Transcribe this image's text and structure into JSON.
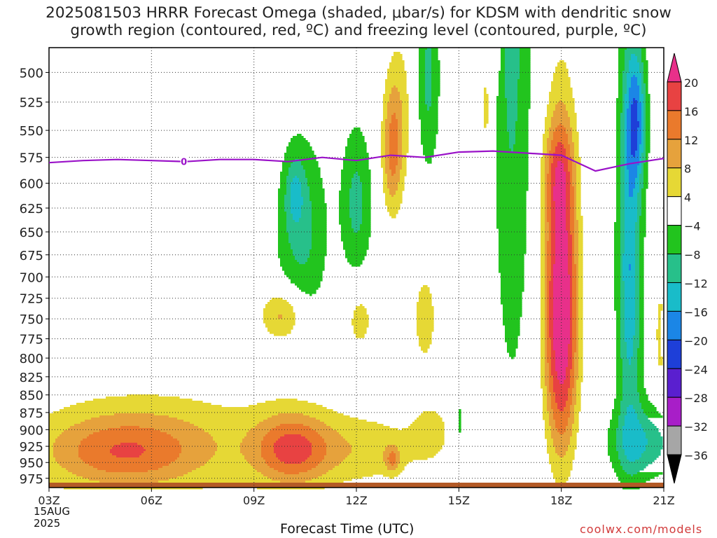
{
  "title": {
    "line1": "2025081503 HRRR Forecast Omega (shaded, μbar/s) for KDSM with dendritic snow",
    "line2": "growth region (contoured, red, ºC) and freezing level (contoured, purple, ºC)"
  },
  "chart_data": {
    "type": "heatmap",
    "title": "2025081503 HRRR Forecast Omega (shaded, μbar/s) for KDSM with dendritic snow growth region (contoured, red, ºC) and freezing level (contoured, purple, ºC)",
    "xlabel": "Forecast Time (UTC)",
    "ylabel": "",
    "x_ticks": [
      "03Z",
      "06Z",
      "09Z",
      "12Z",
      "15Z",
      "18Z",
      "21Z"
    ],
    "x_tick_hours": [
      3,
      6,
      9,
      12,
      15,
      18,
      21
    ],
    "x_range_hours": [
      3,
      21
    ],
    "y_ticks": [
      500,
      525,
      550,
      575,
      600,
      625,
      650,
      675,
      700,
      725,
      750,
      775,
      800,
      825,
      850,
      875,
      900,
      925,
      950,
      975
    ],
    "y_range": [
      480,
      990
    ],
    "y_scale": "log",
    "y_inverted": true,
    "grid": true,
    "start_date": [
      "15AUG",
      "2025"
    ],
    "colorbar": {
      "labels": [
        "20",
        "16",
        "12",
        "8",
        "4",
        "−4",
        "−8",
        "−12",
        "−16",
        "−20",
        "−24",
        "−28",
        "−32",
        "−36"
      ],
      "bins": [
        {
          "from": 20,
          "to": 99,
          "color": "#e8308a"
        },
        {
          "from": 16,
          "to": 20,
          "color": "#e84242"
        },
        {
          "from": 12,
          "to": 16,
          "color": "#ea7a2c"
        },
        {
          "from": 8,
          "to": 12,
          "color": "#e6a23c"
        },
        {
          "from": 4,
          "to": 8,
          "color": "#e6d835"
        },
        {
          "from": -4,
          "to": 4,
          "color": "#ffffff"
        },
        {
          "from": -8,
          "to": -4,
          "color": "#22c41e"
        },
        {
          "from": -12,
          "to": -8,
          "color": "#27c08a"
        },
        {
          "from": -16,
          "to": -12,
          "color": "#19bcc9"
        },
        {
          "from": -20,
          "to": -16,
          "color": "#1b86e6"
        },
        {
          "from": -24,
          "to": -20,
          "color": "#1e3fd8"
        },
        {
          "from": -28,
          "to": -24,
          "color": "#5a1fcf"
        },
        {
          "from": -32,
          "to": -28,
          "color": "#a81ec8"
        },
        {
          "from": -36,
          "to": -32,
          "color": "#a6a6a6"
        },
        {
          "from": -99,
          "to": -36,
          "color": "#000000"
        }
      ]
    },
    "omega_features": [
      {
        "hour": 18.0,
        "p": 740,
        "dh": 0.5,
        "dp": 195,
        "peak": 24,
        "pow": 2.4
      },
      {
        "hour": 17.9,
        "p": 590,
        "dh": 0.45,
        "dp": 50,
        "peak": 8,
        "pow": 2
      },
      {
        "hour": 20.0,
        "p": 690,
        "dh": 0.36,
        "dp": 230,
        "peak": -16,
        "pow": 1.8
      },
      {
        "hour": 20.2,
        "p": 540,
        "dh": 0.3,
        "dp": 60,
        "peak": -14,
        "pow": 2
      },
      {
        "hour": 20.4,
        "p": 920,
        "dh": 1.0,
        "dp": 55,
        "peak": -11,
        "pow": 2
      },
      {
        "hour": 16.55,
        "p": 330,
        "dh": 0.6,
        "dp": 500,
        "peak": -9.5,
        "pow": 2.4
      },
      {
        "hour": 10.4,
        "p": 650,
        "dh": 0.78,
        "dp": 100,
        "peak": -9,
        "pow": 2.2
      },
      {
        "hour": 10.2,
        "p": 610,
        "dh": 0.28,
        "dp": 35,
        "peak": -7,
        "pow": 2
      },
      {
        "hour": 12.0,
        "p": 620,
        "dh": 0.48,
        "dp": 80,
        "peak": -9,
        "pow": 2.2
      },
      {
        "hour": 14.1,
        "p": 505,
        "dh": 0.35,
        "dp": 85,
        "peak": -9,
        "pow": 2
      },
      {
        "hour": 15.8,
        "p": 530,
        "dh": 0.2,
        "dp": 50,
        "peak": 6,
        "pow": 2
      },
      {
        "hour": 15.0,
        "p": 890,
        "dh": 0.1,
        "dp": 45,
        "peak": -6,
        "pow": 2
      },
      {
        "hour": 13.05,
        "p": 570,
        "dh": 0.3,
        "dp": 60,
        "peak": 12,
        "pow": 2
      },
      {
        "hour": 13.3,
        "p": 530,
        "dh": 0.4,
        "dp": 70,
        "peak": 4.8,
        "pow": 2
      },
      {
        "hour": 14.0,
        "p": 750,
        "dh": 0.38,
        "dp": 65,
        "peak": 6,
        "pow": 2
      },
      {
        "hour": 16.1,
        "p": 480,
        "dh": 0.12,
        "dp": 30,
        "peak": 6,
        "pow": 2
      },
      {
        "hour": 9.85,
        "p": 745,
        "dh": 0.62,
        "dp": 32,
        "peak": 10,
        "pow": 2
      },
      {
        "hour": 12.1,
        "p": 750,
        "dh": 0.4,
        "dp": 40,
        "peak": 6,
        "pow": 2
      },
      {
        "hour": 10.1,
        "p": 930,
        "dh": 1.1,
        "dp": 55,
        "peak": 14.5,
        "pow": 2
      },
      {
        "hour": 5.1,
        "p": 935,
        "dh": 2.2,
        "dp": 55,
        "peak": 10.5,
        "pow": 2
      },
      {
        "hour": 6.3,
        "p": 920,
        "dh": 3.9,
        "dp": 80,
        "peak": 6.8,
        "pow": 2
      },
      {
        "hour": 12.2,
        "p": 930,
        "dh": 1.9,
        "dp": 55,
        "peak": 6.2,
        "pow": 2
      },
      {
        "hour": 13.05,
        "p": 945,
        "dh": 0.22,
        "dp": 20,
        "peak": 9,
        "pow": 2
      },
      {
        "hour": 14.2,
        "p": 900,
        "dh": 0.6,
        "dp": 45,
        "peak": 4.5,
        "pow": 2
      },
      {
        "hour": 16.0,
        "p": 925,
        "dh": 0.15,
        "dp": 30,
        "peak": 4.5,
        "pow": 2
      },
      {
        "hour": 21.0,
        "p": 770,
        "dh": 0.2,
        "dp": 70,
        "peak": 11,
        "pow": 2
      }
    ],
    "freezing_level": {
      "color": "#9a12c8",
      "label": "0",
      "label_hour": 6.95,
      "hours": [
        3.0,
        4.0,
        5.0,
        6.0,
        7.0,
        8.0,
        9.0,
        10.0,
        11.0,
        12.0,
        13.0,
        14.0,
        15.0,
        16.0,
        17.0,
        18.0,
        19.0,
        20.0,
        21.0
      ],
      "p": [
        580,
        578,
        577,
        578,
        579,
        577,
        577,
        579,
        575,
        578,
        573,
        575,
        570,
        569,
        571,
        573,
        588,
        581,
        576
      ]
    },
    "surface_color": "#b35a26"
  },
  "xlabel": "Forecast Time (UTC)",
  "date_line1": "15AUG",
  "date_line2": "2025",
  "credit": "coolwx.com/models"
}
